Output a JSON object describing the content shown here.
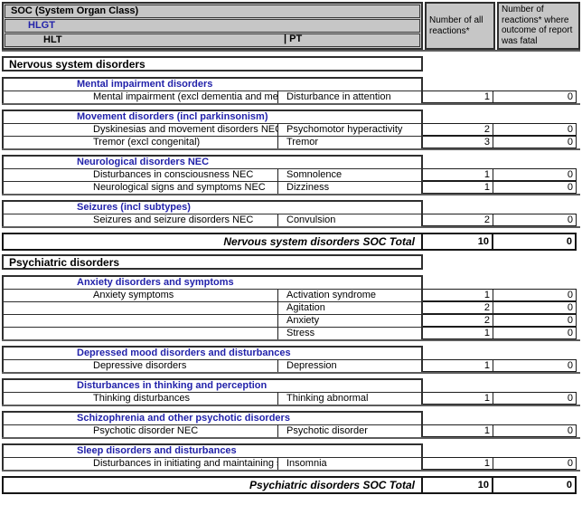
{
  "colors": {
    "hlgt_blue": "#2222aa",
    "header_bg": "#c6c6c6",
    "border_dark": "#2f2f2f"
  },
  "header": {
    "soc_label": "SOC (System Organ Class)",
    "hlgt_label": "HLGT",
    "hlt_label": "HLT",
    "pt_label": "| PT",
    "col_all": "Number of all reactions*",
    "col_fatal": "Number of reactions* where outcome of report was fatal"
  },
  "sections": [
    {
      "type": "soc",
      "title": "Nervous system disorders"
    },
    {
      "type": "group",
      "hlgt": "Mental impairment disorders",
      "rows": [
        {
          "hlt": "Mental impairment (excl dementia and memory loss)",
          "pt": "Disturbance in attention",
          "all": "1",
          "fatal": "0"
        }
      ]
    },
    {
      "type": "group",
      "hlgt": "Movement disorders (incl parkinsonism)",
      "rows": [
        {
          "hlt": "Dyskinesias and movement disorders NEC",
          "pt": "Psychomotor hyperactivity",
          "all": "2",
          "fatal": "0"
        },
        {
          "hlt": "Tremor (excl congenital)",
          "pt": "Tremor",
          "all": "3",
          "fatal": "0"
        }
      ]
    },
    {
      "type": "group",
      "hlgt": "Neurological disorders NEC",
      "rows": [
        {
          "hlt": "Disturbances in consciousness NEC",
          "pt": "Somnolence",
          "all": "1",
          "fatal": "0"
        },
        {
          "hlt": "Neurological signs and symptoms NEC",
          "pt": "Dizziness",
          "all": "1",
          "fatal": "0"
        }
      ]
    },
    {
      "type": "group",
      "hlgt": "Seizures (incl subtypes)",
      "rows": [
        {
          "hlt": "Seizures and seizure disorders NEC",
          "pt": "Convulsion",
          "all": "2",
          "fatal": "0"
        }
      ]
    },
    {
      "type": "total",
      "label": "Nervous system disorders SOC Total",
      "all": "10",
      "fatal": "0"
    },
    {
      "type": "soc",
      "title": "Psychiatric disorders"
    },
    {
      "type": "group",
      "hlgt": "Anxiety disorders and symptoms",
      "rows": [
        {
          "hlt": "Anxiety symptoms",
          "pt": "Activation syndrome",
          "all": "1",
          "fatal": "0"
        },
        {
          "hlt": "",
          "pt": "Agitation",
          "all": "2",
          "fatal": "0"
        },
        {
          "hlt": "",
          "pt": "Anxiety",
          "all": "2",
          "fatal": "0"
        },
        {
          "hlt": "",
          "pt": "Stress",
          "all": "1",
          "fatal": "0"
        }
      ]
    },
    {
      "type": "group",
      "hlgt": "Depressed mood disorders and disturbances",
      "rows": [
        {
          "hlt": "Depressive disorders",
          "pt": "Depression",
          "all": "1",
          "fatal": "0"
        }
      ]
    },
    {
      "type": "group",
      "hlgt": "Disturbances in thinking and perception",
      "rows": [
        {
          "hlt": "Thinking disturbances",
          "pt": "Thinking abnormal",
          "all": "1",
          "fatal": "0"
        }
      ]
    },
    {
      "type": "group",
      "hlgt": "Schizophrenia and other psychotic disorders",
      "rows": [
        {
          "hlt": "Psychotic disorder NEC",
          "pt": "Psychotic disorder",
          "all": "1",
          "fatal": "0"
        }
      ]
    },
    {
      "type": "group",
      "hlgt": "Sleep disorders and disturbances",
      "rows": [
        {
          "hlt": "Disturbances in initiating and maintaining sleep",
          "pt": "Insomnia",
          "all": "1",
          "fatal": "0"
        }
      ]
    },
    {
      "type": "total",
      "label": "Psychiatric disorders SOC Total",
      "all": "10",
      "fatal": "0"
    }
  ]
}
